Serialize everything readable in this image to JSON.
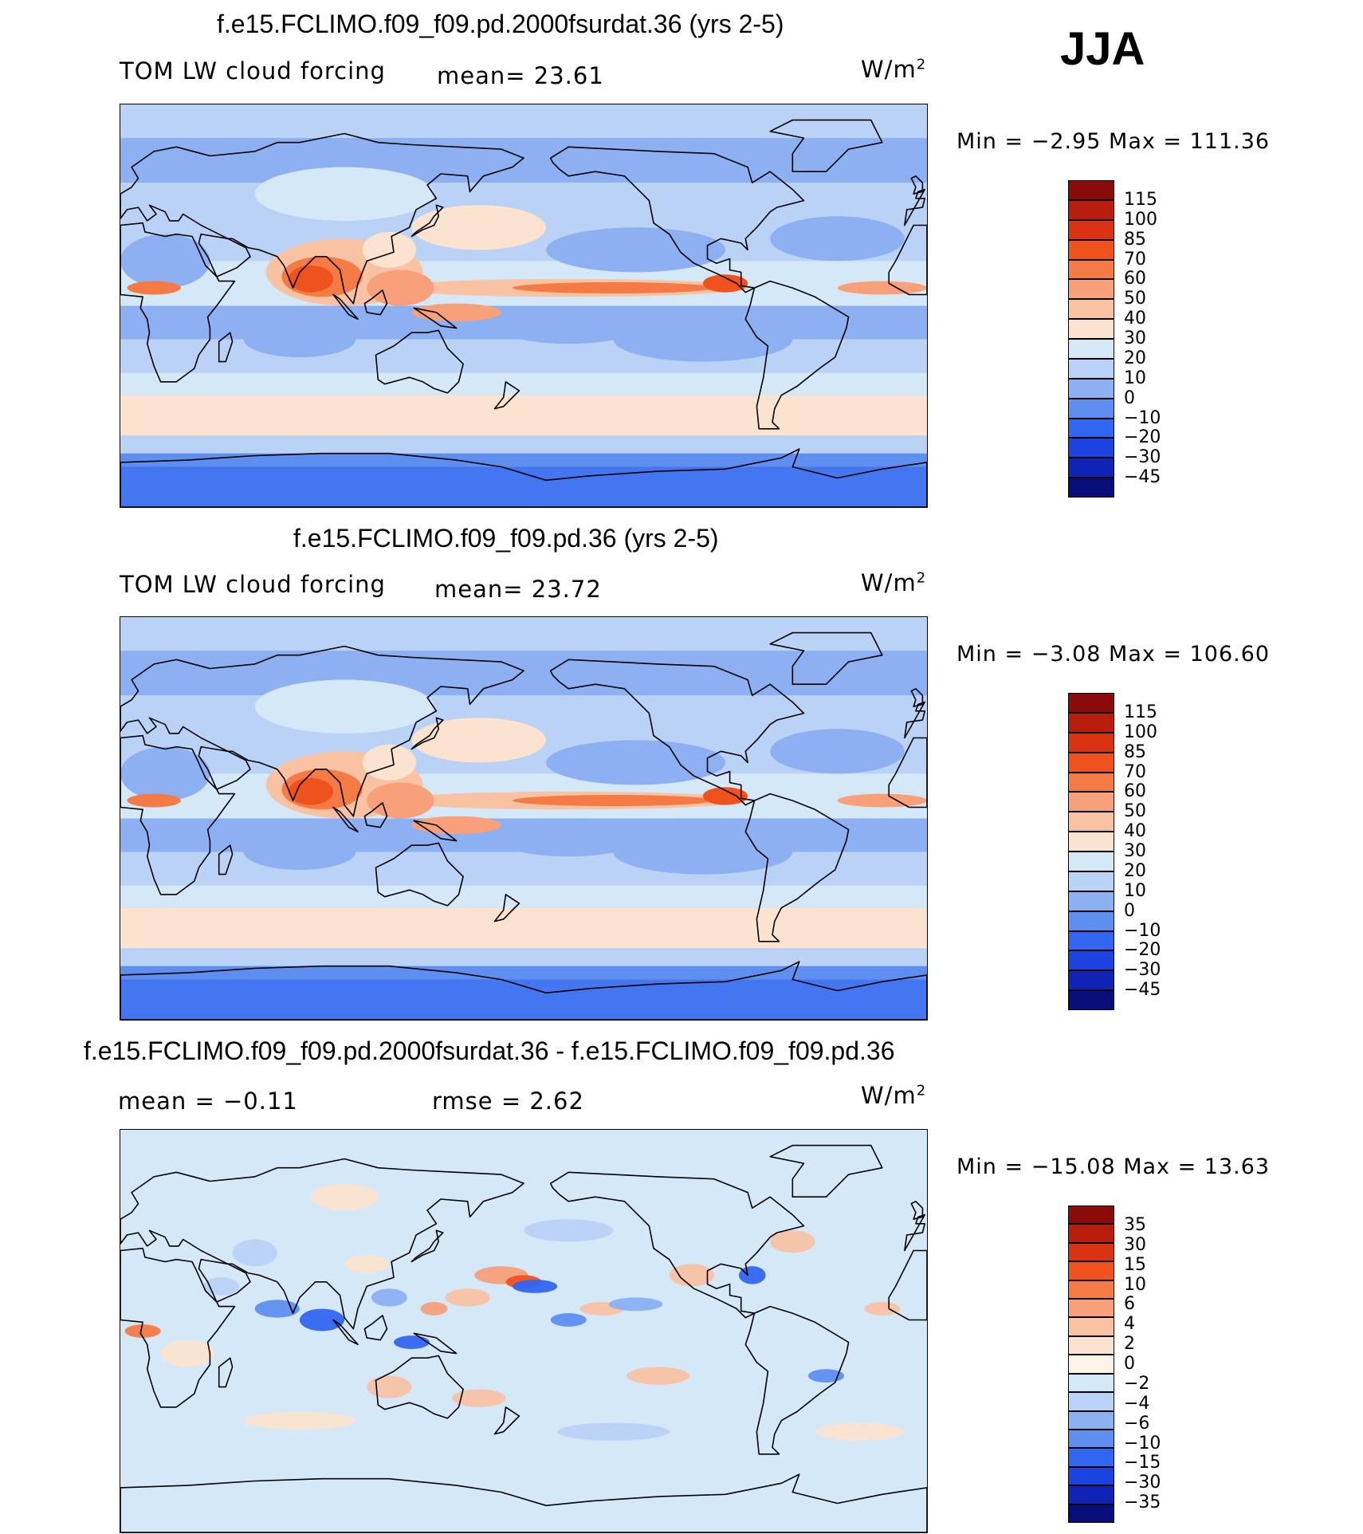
{
  "season": "JJA",
  "panels": [
    {
      "id": "p1",
      "title": "f.e15.FCLIMO.f09_f09.pd.2000fsurdat.36 (yrs 2-5)",
      "variable": "TOM LW cloud forcing",
      "stat1": "mean=   23.61",
      "units": "W/m",
      "units_exp": "2",
      "minmax": "Min  =   −2.95  Max  =  111.36",
      "palette": "abs",
      "colorbar": {
        "labels": [
          "115",
          "100",
          "85",
          "70",
          "60",
          "50",
          "40",
          "30",
          "20",
          "10",
          "0",
          "−10",
          "−20",
          "−30",
          "−45"
        ],
        "colors": [
          "#8b0a0a",
          "#b81d0e",
          "#d93314",
          "#f0521d",
          "#f47b45",
          "#f7a07a",
          "#f8c2a3",
          "#fbe3cf",
          "#d5e8f8",
          "#b9d2f5",
          "#8cb0f2",
          "#5e8ef0",
          "#3266f0",
          "#1c42e0",
          "#0f23b4",
          "#070d7a"
        ]
      }
    },
    {
      "id": "p2",
      "title": "f.e15.FCLIMO.f09_f09.pd.36 (yrs 2-5)",
      "variable": "TOM LW cloud forcing",
      "stat1": "mean=   23.72",
      "units": "W/m",
      "units_exp": "2",
      "minmax": "Min  =   −3.08  Max  =  106.60",
      "palette": "abs",
      "colorbar": {
        "labels": [
          "115",
          "100",
          "85",
          "70",
          "60",
          "50",
          "40",
          "30",
          "20",
          "10",
          "0",
          "−10",
          "−20",
          "−30",
          "−45"
        ],
        "colors": [
          "#8b0a0a",
          "#b81d0e",
          "#d93314",
          "#f0521d",
          "#f47b45",
          "#f7a07a",
          "#f8c2a3",
          "#fbe3cf",
          "#d5e8f8",
          "#b9d2f5",
          "#8cb0f2",
          "#5e8ef0",
          "#3266f0",
          "#1c42e0",
          "#0f23b4",
          "#070d7a"
        ]
      }
    },
    {
      "id": "p3",
      "title": "f.e15.FCLIMO.f09_f09.pd.2000fsurdat.36 - f.e15.FCLIMO.f09_f09.pd.36",
      "variable": "mean  =   −0.11",
      "stat1": "rmse  =    2.62",
      "units": "W/m",
      "units_exp": "2",
      "minmax": "Min  = −15.08  Max  =   13.63",
      "palette": "diff",
      "colorbar": {
        "labels": [
          "35",
          "30",
          "15",
          "10",
          "6",
          "4",
          "2",
          "0",
          "−2",
          "−4",
          "−6",
          "−10",
          "−15",
          "−30",
          "−35"
        ],
        "colors": [
          "#8b0a0a",
          "#b81d0e",
          "#d93314",
          "#f0521d",
          "#f47b45",
          "#f7a07a",
          "#f8c2a3",
          "#fbe3cf",
          "#fdf3e6",
          "#d5e8f8",
          "#b9d2f5",
          "#8cb0f2",
          "#5e8ef0",
          "#3266f0",
          "#1c42e0",
          "#0f23b4",
          "#070d7a"
        ]
      }
    }
  ],
  "chart_data": [
    {
      "type": "heatmap",
      "title": "f.e15.FCLIMO.f09_f09.pd.2000fsurdat.36 (yrs 2-5)",
      "subtitle": "TOM LW cloud forcing",
      "mean": 23.61,
      "min": -2.95,
      "max": 111.36,
      "units": "W/m2",
      "levels": [
        -45,
        -30,
        -20,
        -10,
        0,
        10,
        20,
        30,
        40,
        50,
        60,
        70,
        85,
        100,
        115
      ]
    },
    {
      "type": "heatmap",
      "title": "f.e15.FCLIMO.f09_f09.pd.36 (yrs 2-5)",
      "subtitle": "TOM LW cloud forcing",
      "mean": 23.72,
      "min": -3.08,
      "max": 106.6,
      "units": "W/m2",
      "levels": [
        -45,
        -30,
        -20,
        -10,
        0,
        10,
        20,
        30,
        40,
        50,
        60,
        70,
        85,
        100,
        115
      ]
    },
    {
      "type": "heatmap",
      "title": "f.e15.FCLIMO.f09_f09.pd.2000fsurdat.36 - f.e15.FCLIMO.f09_f09.pd.36",
      "mean": -0.11,
      "rmse": 2.62,
      "min": -15.08,
      "max": 13.63,
      "units": "W/m2",
      "levels": [
        -35,
        -30,
        -15,
        -10,
        -6,
        -4,
        -2,
        0,
        2,
        4,
        6,
        10,
        15,
        30,
        35
      ]
    }
  ]
}
